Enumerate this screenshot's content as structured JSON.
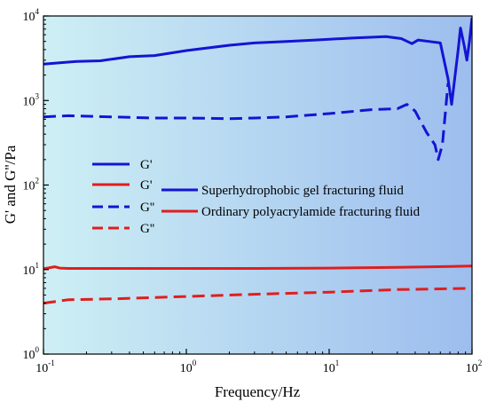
{
  "chart_data": {
    "type": "line",
    "title": "",
    "xlabel": "Frequency/Hz",
    "ylabel": "G' and G''/Pa",
    "x_scale": "log",
    "y_scale": "log",
    "xlim": [
      0.1,
      100
    ],
    "ylim": [
      1,
      10000
    ],
    "grid": false,
    "background_gradient": [
      "#cdeff4",
      "#9dbdee"
    ],
    "x_ticks": [
      {
        "base": "10",
        "exp": "-1",
        "value": 0.1
      },
      {
        "base": "10",
        "exp": "0",
        "value": 1
      },
      {
        "base": "10",
        "exp": "1",
        "value": 10
      },
      {
        "base": "10",
        "exp": "2",
        "value": 100
      }
    ],
    "y_ticks": [
      {
        "base": "10",
        "exp": "0",
        "value": 1
      },
      {
        "base": "10",
        "exp": "1",
        "value": 10
      },
      {
        "base": "10",
        "exp": "2",
        "value": 100
      },
      {
        "base": "10",
        "exp": "3",
        "value": 1000
      },
      {
        "base": "10",
        "exp": "4",
        "value": 10000
      }
    ],
    "legend_position": "center-left",
    "legend_items": [
      {
        "label": "G'",
        "color": "#1414d4",
        "dash": "solid"
      },
      {
        "label": "G'",
        "color": "#e01e1e",
        "dash": "solid"
      },
      {
        "label": "G''",
        "color": "#1414d4",
        "dash": "dashed"
      },
      {
        "label": "G''",
        "color": "#e01e1e",
        "dash": "dashed"
      }
    ],
    "group_legend": [
      {
        "label": "Superhydrophobic gel fracturing fluid",
        "color": "#1414d4"
      },
      {
        "label": "Ordinary polyacrylamide fracturing fluid",
        "color": "#e01e1e"
      }
    ],
    "series": [
      {
        "color": "#1414d4",
        "dash": "solid",
        "points": [
          [
            0.1,
            2700
          ],
          [
            0.13,
            2800
          ],
          [
            0.17,
            2900
          ],
          [
            0.25,
            2950
          ],
          [
            0.4,
            3300
          ],
          [
            0.6,
            3400
          ],
          [
            1,
            3900
          ],
          [
            2,
            4500
          ],
          [
            3,
            4800
          ],
          [
            5,
            5000
          ],
          [
            8,
            5200
          ],
          [
            15,
            5500
          ],
          [
            25,
            5700
          ],
          [
            32,
            5400
          ],
          [
            38,
            4700
          ],
          [
            42,
            5200
          ],
          [
            50,
            5000
          ],
          [
            60,
            4800
          ],
          [
            68,
            1800
          ],
          [
            72,
            900
          ],
          [
            80,
            4000
          ],
          [
            83,
            7200
          ],
          [
            88,
            4500
          ],
          [
            92,
            3000
          ],
          [
            96,
            5000
          ],
          [
            100,
            9500
          ]
        ]
      },
      {
        "color": "#e01e1e",
        "dash": "solid",
        "points": [
          [
            0.1,
            10.2
          ],
          [
            0.12,
            10.8
          ],
          [
            0.13,
            10.4
          ],
          [
            0.15,
            10.3
          ],
          [
            0.3,
            10.3
          ],
          [
            1,
            10.3
          ],
          [
            3,
            10.3
          ],
          [
            10,
            10.4
          ],
          [
            30,
            10.6
          ],
          [
            100,
            11.0
          ]
        ]
      },
      {
        "color": "#1414d4",
        "dash": "dashed",
        "points": [
          [
            0.1,
            640
          ],
          [
            0.15,
            660
          ],
          [
            0.3,
            640
          ],
          [
            0.6,
            620
          ],
          [
            1,
            620
          ],
          [
            2,
            610
          ],
          [
            3,
            620
          ],
          [
            5,
            640
          ],
          [
            10,
            700
          ],
          [
            20,
            780
          ],
          [
            30,
            800
          ],
          [
            35,
            900
          ],
          [
            40,
            750
          ],
          [
            48,
            420
          ],
          [
            55,
            300
          ],
          [
            58,
            200
          ],
          [
            62,
            300
          ],
          [
            68,
            1600
          ]
        ]
      },
      {
        "color": "#e01e1e",
        "dash": "dashed",
        "points": [
          [
            0.1,
            4.0
          ],
          [
            0.15,
            4.4
          ],
          [
            0.3,
            4.5
          ],
          [
            1,
            4.8
          ],
          [
            3,
            5.1
          ],
          [
            10,
            5.4
          ],
          [
            30,
            5.8
          ],
          [
            100,
            6.0
          ]
        ]
      }
    ]
  }
}
